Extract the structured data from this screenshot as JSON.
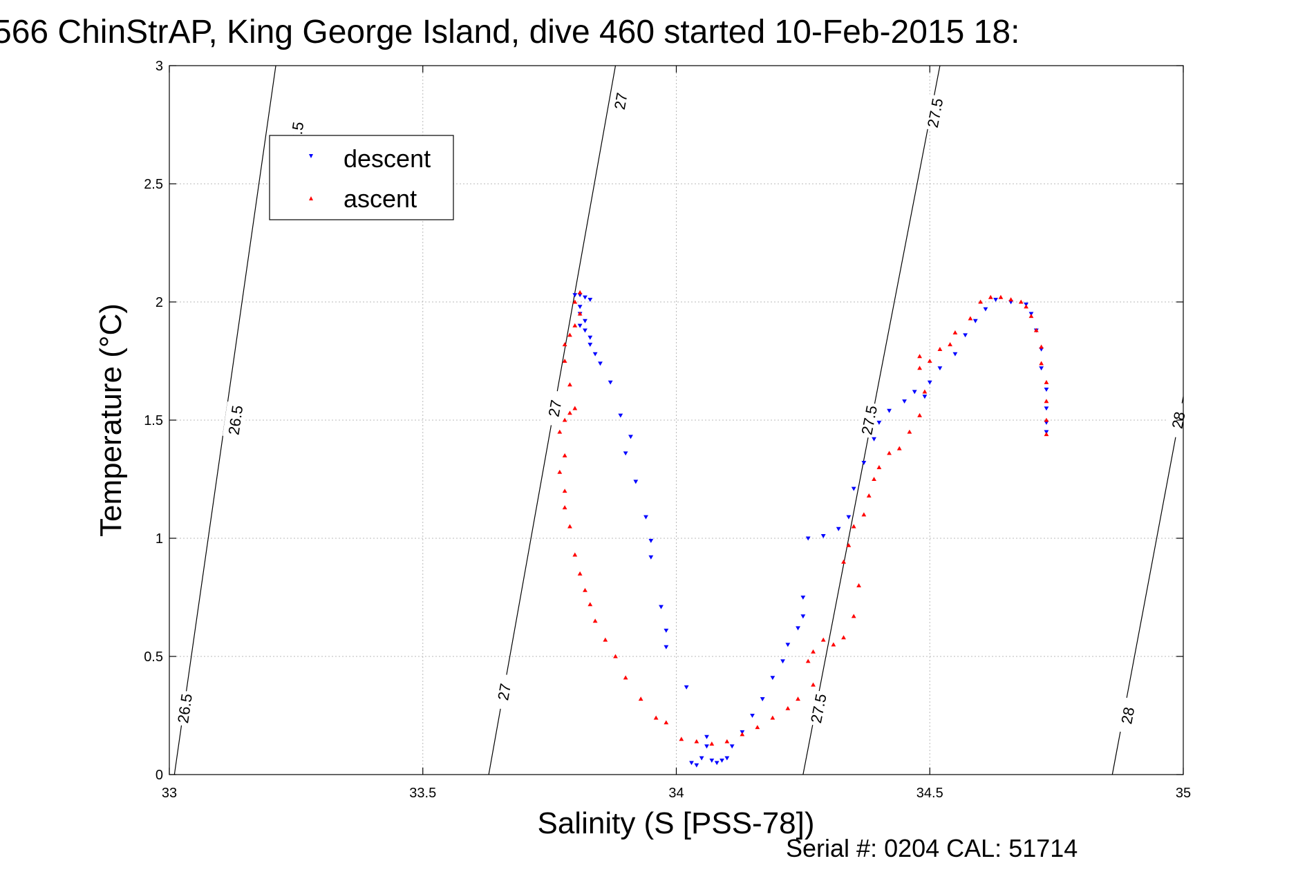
{
  "chart_data": {
    "type": "scatter",
    "title": "566 ChinStrAP, King George Island, dive 460 started 10-Feb-2015 18:",
    "xlabel": "Salinity (S [PSS-78])",
    "ylabel": "Temperature (°C)",
    "xlim": [
      33,
      35
    ],
    "ylim": [
      0,
      3
    ],
    "x_ticks": [
      33,
      33.5,
      34,
      34.5,
      35
    ],
    "x_tick_labels": [
      "33",
      "33.5",
      "34",
      "34.5",
      "35"
    ],
    "y_ticks": [
      0,
      0.5,
      1,
      1.5,
      2,
      2.5,
      3
    ],
    "y_tick_labels": [
      "0",
      "0.5",
      "1",
      "1.5",
      "2",
      "2.5",
      "3"
    ],
    "grid": true,
    "legend_position": "top-left",
    "series": [
      {
        "name": "descent",
        "color": "#0000ff",
        "marker": "triangle-down",
        "points": [
          [
            33.8,
            2.03
          ],
          [
            33.81,
            2.03
          ],
          [
            33.82,
            2.02
          ],
          [
            33.83,
            2.01
          ],
          [
            33.81,
            1.98
          ],
          [
            33.81,
            1.95
          ],
          [
            33.82,
            1.92
          ],
          [
            33.81,
            1.9
          ],
          [
            33.82,
            1.88
          ],
          [
            33.83,
            1.85
          ],
          [
            33.83,
            1.82
          ],
          [
            33.84,
            1.78
          ],
          [
            33.85,
            1.74
          ],
          [
            33.87,
            1.66
          ],
          [
            33.89,
            1.52
          ],
          [
            33.9,
            1.36
          ],
          [
            33.91,
            1.43
          ],
          [
            33.92,
            1.24
          ],
          [
            33.94,
            1.09
          ],
          [
            33.95,
            0.99
          ],
          [
            33.95,
            0.92
          ],
          [
            33.97,
            0.71
          ],
          [
            33.98,
            0.61
          ],
          [
            33.98,
            0.54
          ],
          [
            34.02,
            0.37
          ],
          [
            34.03,
            0.05
          ],
          [
            34.04,
            0.04
          ],
          [
            34.05,
            0.07
          ],
          [
            34.06,
            0.12
          ],
          [
            34.06,
            0.16
          ],
          [
            34.07,
            0.06
          ],
          [
            34.08,
            0.05
          ],
          [
            34.09,
            0.06
          ],
          [
            34.1,
            0.07
          ],
          [
            34.11,
            0.12
          ],
          [
            34.13,
            0.18
          ],
          [
            34.15,
            0.25
          ],
          [
            34.17,
            0.32
          ],
          [
            34.19,
            0.41
          ],
          [
            34.21,
            0.48
          ],
          [
            34.22,
            0.55
          ],
          [
            34.24,
            0.62
          ],
          [
            34.25,
            0.67
          ],
          [
            34.25,
            0.75
          ],
          [
            34.26,
            1.0
          ],
          [
            34.29,
            1.01
          ],
          [
            34.32,
            1.04
          ],
          [
            34.34,
            1.09
          ],
          [
            34.35,
            1.21
          ],
          [
            34.37,
            1.32
          ],
          [
            34.39,
            1.42
          ],
          [
            34.4,
            1.49
          ],
          [
            34.42,
            1.54
          ],
          [
            34.45,
            1.58
          ],
          [
            34.47,
            1.62
          ],
          [
            34.49,
            1.6
          ],
          [
            34.5,
            1.66
          ],
          [
            34.52,
            1.72
          ],
          [
            34.55,
            1.78
          ],
          [
            34.57,
            1.86
          ],
          [
            34.59,
            1.92
          ],
          [
            34.61,
            1.97
          ],
          [
            34.63,
            2.01
          ],
          [
            34.66,
            2.0
          ],
          [
            34.69,
            1.99
          ],
          [
            34.7,
            1.95
          ],
          [
            34.71,
            1.88
          ],
          [
            34.72,
            1.8
          ],
          [
            34.72,
            1.72
          ],
          [
            34.73,
            1.63
          ],
          [
            34.73,
            1.55
          ],
          [
            34.73,
            1.49
          ],
          [
            34.73,
            1.45
          ]
        ]
      },
      {
        "name": "ascent",
        "color": "#ff0000",
        "marker": "triangle-up",
        "points": [
          [
            34.73,
            1.44
          ],
          [
            34.73,
            1.5
          ],
          [
            34.73,
            1.58
          ],
          [
            34.73,
            1.66
          ],
          [
            34.72,
            1.74
          ],
          [
            34.72,
            1.81
          ],
          [
            34.71,
            1.88
          ],
          [
            34.7,
            1.94
          ],
          [
            34.69,
            1.98
          ],
          [
            34.68,
            2.0
          ],
          [
            34.66,
            2.01
          ],
          [
            34.64,
            2.02
          ],
          [
            34.62,
            2.02
          ],
          [
            34.6,
            2.0
          ],
          [
            34.58,
            1.93
          ],
          [
            34.55,
            1.87
          ],
          [
            34.54,
            1.82
          ],
          [
            34.52,
            1.8
          ],
          [
            34.5,
            1.75
          ],
          [
            34.48,
            1.77
          ],
          [
            34.48,
            1.72
          ],
          [
            34.49,
            1.62
          ],
          [
            34.48,
            1.52
          ],
          [
            34.46,
            1.45
          ],
          [
            34.44,
            1.38
          ],
          [
            34.42,
            1.36
          ],
          [
            34.4,
            1.3
          ],
          [
            34.39,
            1.25
          ],
          [
            34.38,
            1.18
          ],
          [
            34.37,
            1.1
          ],
          [
            34.35,
            1.05
          ],
          [
            34.34,
            0.97
          ],
          [
            34.33,
            0.9
          ],
          [
            34.36,
            0.8
          ],
          [
            34.35,
            0.67
          ],
          [
            34.33,
            0.58
          ],
          [
            34.31,
            0.55
          ],
          [
            34.29,
            0.57
          ],
          [
            34.27,
            0.52
          ],
          [
            34.26,
            0.48
          ],
          [
            34.27,
            0.38
          ],
          [
            34.24,
            0.32
          ],
          [
            34.22,
            0.28
          ],
          [
            34.19,
            0.24
          ],
          [
            34.16,
            0.2
          ],
          [
            34.13,
            0.17
          ],
          [
            34.1,
            0.14
          ],
          [
            34.07,
            0.13
          ],
          [
            34.04,
            0.14
          ],
          [
            34.01,
            0.15
          ],
          [
            33.98,
            0.22
          ],
          [
            33.96,
            0.24
          ],
          [
            33.93,
            0.32
          ],
          [
            33.9,
            0.41
          ],
          [
            33.88,
            0.5
          ],
          [
            33.86,
            0.57
          ],
          [
            33.84,
            0.65
          ],
          [
            33.83,
            0.72
          ],
          [
            33.82,
            0.78
          ],
          [
            33.81,
            0.85
          ],
          [
            33.8,
            0.93
          ],
          [
            33.79,
            1.05
          ],
          [
            33.78,
            1.13
          ],
          [
            33.78,
            1.2
          ],
          [
            33.77,
            1.28
          ],
          [
            33.78,
            1.35
          ],
          [
            33.77,
            1.45
          ],
          [
            33.78,
            1.5
          ],
          [
            33.79,
            1.53
          ],
          [
            33.8,
            1.55
          ],
          [
            33.79,
            1.65
          ],
          [
            33.78,
            1.75
          ],
          [
            33.78,
            1.82
          ],
          [
            33.79,
            1.86
          ],
          [
            33.8,
            1.9
          ],
          [
            33.81,
            1.95
          ],
          [
            33.8,
            2.0
          ],
          [
            33.81,
            2.04
          ]
        ]
      }
    ],
    "density_contours": [
      {
        "label": "26.5",
        "points": [
          [
            33.01,
            0.0
          ],
          [
            33.21,
            3.0
          ]
        ],
        "label_points": [
          [
            33.03,
            0.28
          ],
          [
            33.13,
            1.5
          ],
          [
            33.25,
            2.7
          ]
        ]
      },
      {
        "label": "27",
        "points": [
          [
            33.63,
            0.0
          ],
          [
            33.88,
            3.0
          ]
        ],
        "label_points": [
          [
            33.66,
            0.35
          ],
          [
            33.76,
            1.55
          ],
          [
            33.89,
            2.85
          ]
        ]
      },
      {
        "label": "27.5",
        "points": [
          [
            34.25,
            0.0
          ],
          [
            34.52,
            3.0
          ]
        ],
        "label_points": [
          [
            34.28,
            0.28
          ],
          [
            34.38,
            1.5
          ],
          [
            34.51,
            2.8
          ]
        ]
      },
      {
        "label": "28",
        "points": [
          [
            34.86,
            0.0
          ],
          [
            35.0,
            1.6
          ]
        ],
        "label_points": [
          [
            34.89,
            0.25
          ],
          [
            34.99,
            1.5
          ]
        ]
      }
    ]
  },
  "footer": {
    "serial_text": "Serial #: 0204  CAL: 51714"
  }
}
